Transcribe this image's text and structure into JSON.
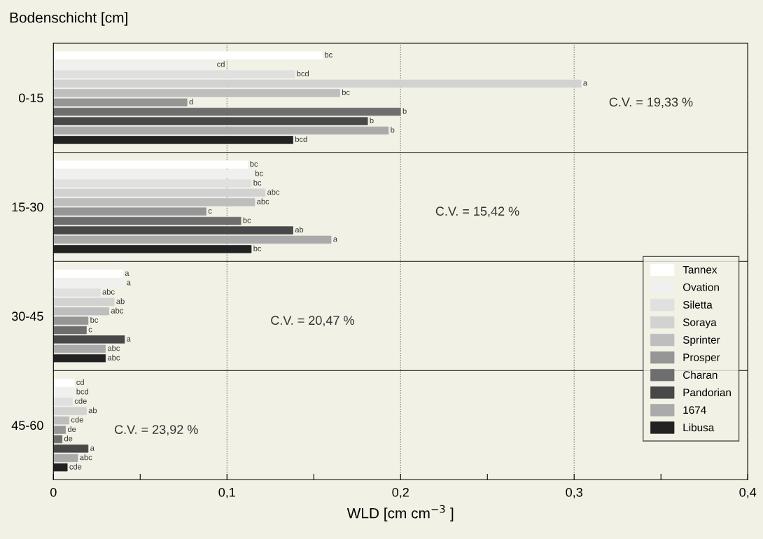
{
  "chart_data": {
    "type": "bar",
    "orientation": "horizontal",
    "ylabel": "Bodenschicht [cm]",
    "xlabel": "WLD [cm cm$^{−3}$ ]",
    "categories": [
      "0-15",
      "15-30",
      "30-45",
      "45-60"
    ],
    "xlim": [
      0,
      0.4
    ],
    "xticks": [
      0,
      {
        "value": 0.05,
        "label": null
      },
      {
        "value": 0.1,
        "label": "0,1"
      },
      {
        "value": 0.15,
        "label": null
      },
      {
        "value": 0.2,
        "label": "0,2"
      },
      {
        "value": 0.25,
        "label": null
      },
      {
        "value": 0.3,
        "label": "0,3"
      },
      {
        "value": 0.35,
        "label": null
      },
      {
        "value": 0.4,
        "label": "0,4"
      }
    ],
    "grid": true,
    "legend": "right",
    "annotations": [
      "C.V. = 19,33 %",
      "C.V. = 15,42 %",
      "C.V. = 20,47 %",
      "C.V. = 23,92 %"
    ],
    "series": [
      {
        "name": "Tannex",
        "color": "#ffffff",
        "values": [
          0.155,
          0.112,
          0.04,
          0.012
        ],
        "value_labels": [
          "bc",
          "bc",
          "a",
          "cd"
        ]
      },
      {
        "name": "Ovation",
        "color": "#f0f0f0",
        "values": [
          0.093,
          0.115,
          0.041,
          0.012
        ],
        "value_labels": [
          "cd",
          "bc",
          "a",
          "bcd"
        ]
      },
      {
        "name": "Siletta",
        "color": "#e0e0e0",
        "values": [
          0.139,
          0.114,
          0.027,
          0.011
        ],
        "value_labels": [
          "bcd",
          "bc",
          "abc",
          "cde"
        ]
      },
      {
        "name": "Soraya",
        "color": "#d2d2d2",
        "values": [
          0.304,
          0.122,
          0.035,
          0.019
        ],
        "value_labels": [
          "a",
          "abc",
          "ab",
          "ab"
        ]
      },
      {
        "name": "Sprinter",
        "color": "#bebebe",
        "values": [
          0.165,
          0.116,
          0.032,
          0.009
        ],
        "value_labels": [
          "bc",
          "abc",
          "abc",
          "cde"
        ]
      },
      {
        "name": "Prosper",
        "color": "#969696",
        "values": [
          0.077,
          0.088,
          0.02,
          0.007
        ],
        "value_labels": [
          "d",
          "c",
          "bc",
          "de"
        ]
      },
      {
        "name": "Charan",
        "color": "#6e6e6e",
        "values": [
          0.2,
          0.108,
          0.019,
          0.005
        ],
        "value_labels": [
          "b",
          "bc",
          "c",
          "de"
        ]
      },
      {
        "name": "Pandorian",
        "color": "#484848",
        "values": [
          0.181,
          0.138,
          0.041,
          0.02
        ],
        "value_labels": [
          "b",
          "ab",
          "a",
          "a"
        ]
      },
      {
        "name": "1674",
        "color": "#aaaaaa",
        "values": [
          0.193,
          0.16,
          0.03,
          0.014
        ],
        "value_labels": [
          "b",
          "a",
          "abc",
          "abc"
        ]
      },
      {
        "name": "Libusa",
        "color": "#222222",
        "values": [
          0.138,
          0.114,
          0.03,
          0.008
        ],
        "value_labels": [
          "bcd",
          "bc",
          "abc",
          "cde"
        ]
      }
    ]
  }
}
